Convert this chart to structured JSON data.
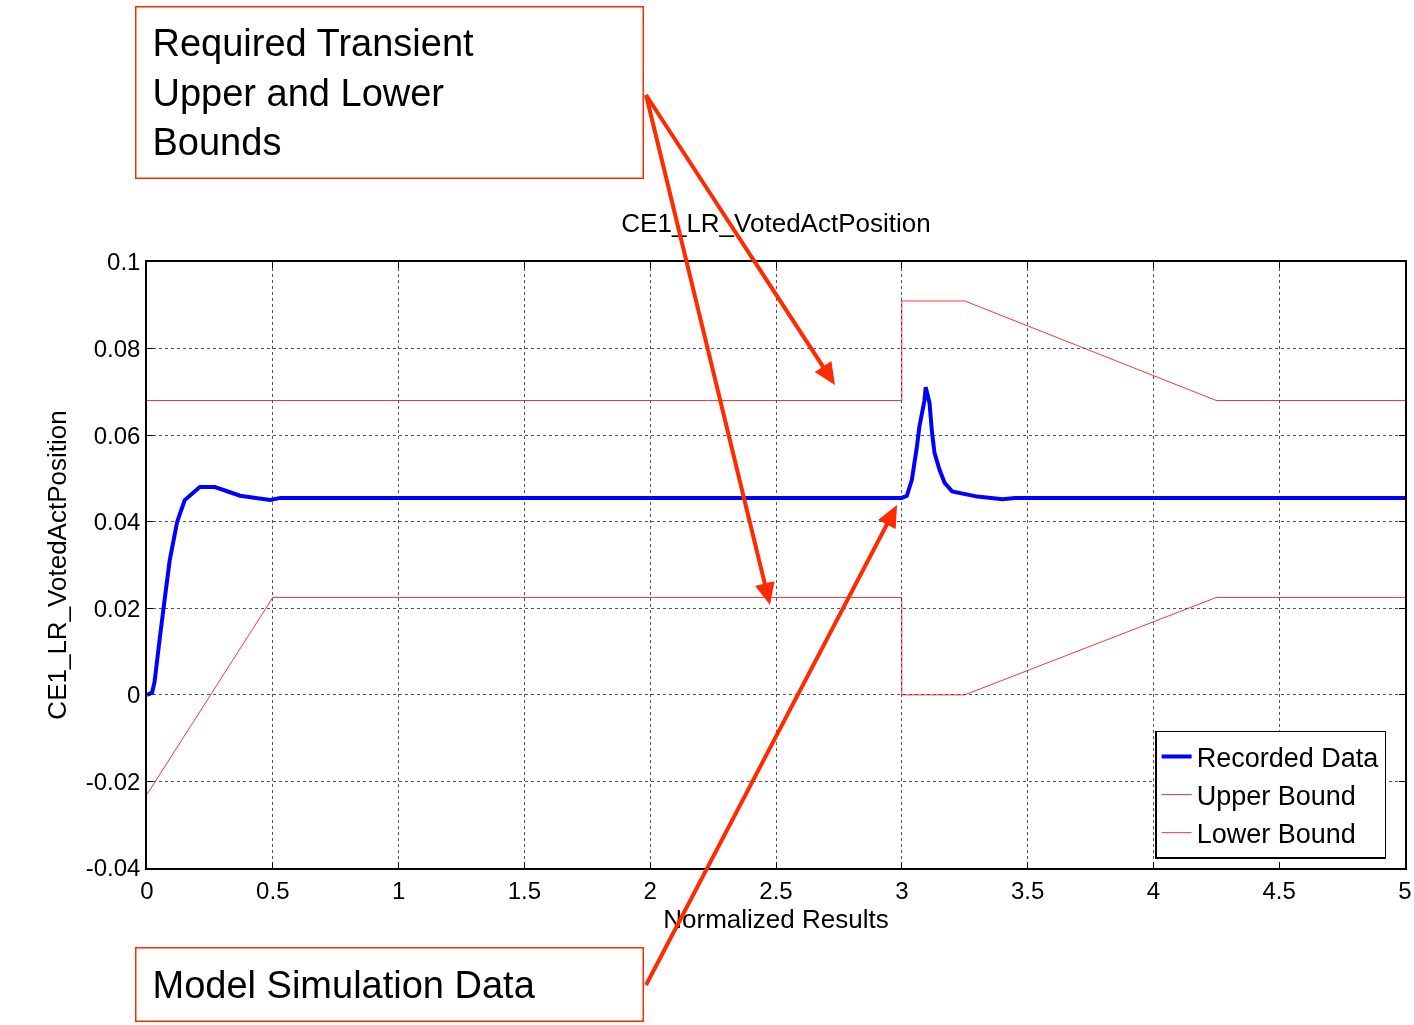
{
  "chart_data": {
    "type": "line",
    "title": "CE1_LR_VotedActPosition",
    "xlabel": "Normalized Results",
    "ylabel": "CE1_LR_VotedActPosition",
    "series": [
      {
        "name": "Recorded Data",
        "color": "#0000ff",
        "x": [
          0,
          0.02,
          0.03,
          0.05,
          0.07,
          0.09,
          0.12,
          0.15,
          0.21,
          0.27,
          0.37,
          0.49,
          0.53,
          1,
          2,
          3,
          3.02,
          3.04,
          3.06,
          3.07,
          3.09,
          3.095,
          3.11,
          3.12,
          3.13,
          3.15,
          3.17,
          3.2,
          3.3,
          3.4,
          3.45,
          3.5,
          4,
          5
        ],
        "values": [
          0,
          0.0005,
          0.003,
          0.0127,
          0.022,
          0.031,
          0.04,
          0.045,
          0.048,
          0.048,
          0.046,
          0.045,
          0.0455,
          0.0455,
          0.0455,
          0.0455,
          0.046,
          0.0497,
          0.0573,
          0.062,
          0.068,
          0.0711,
          0.0675,
          0.0607,
          0.0559,
          0.052,
          0.049,
          0.047,
          0.0458,
          0.0452,
          0.0455,
          0.0455,
          0.0455,
          0.0455
        ]
      },
      {
        "name": "Upper Bound",
        "color": "#ff0000",
        "x": [
          0,
          3,
          3,
          3.25,
          4.25,
          5
        ],
        "values": [
          0.068,
          0.068,
          0.091,
          0.091,
          0.068,
          0.068
        ]
      },
      {
        "name": "Lower Bound",
        "color": "#ff0000",
        "x": [
          0,
          0.5,
          3,
          3,
          3.25,
          4.25,
          5
        ],
        "values": [
          -0.023,
          0.0225,
          0.0225,
          0,
          0,
          0.0225,
          0.0225
        ]
      }
    ],
    "xlim": [
      0,
      5
    ],
    "xticks": [
      0,
      0.5,
      1,
      1.5,
      2,
      2.5,
      3,
      3.5,
      4,
      4.5,
      5
    ],
    "ylim": [
      -0.04,
      0.1
    ],
    "yticks": [
      -0.04,
      -0.02,
      0,
      0.02,
      0.04,
      0.06,
      0.08,
      0.1
    ],
    "grid": true,
    "legend": "bottom right",
    "marker": "none",
    "line_style": "solid",
    "annotations": [
      "Required Transient Upper and Lower Bounds",
      "Model Simulation Data"
    ]
  }
}
